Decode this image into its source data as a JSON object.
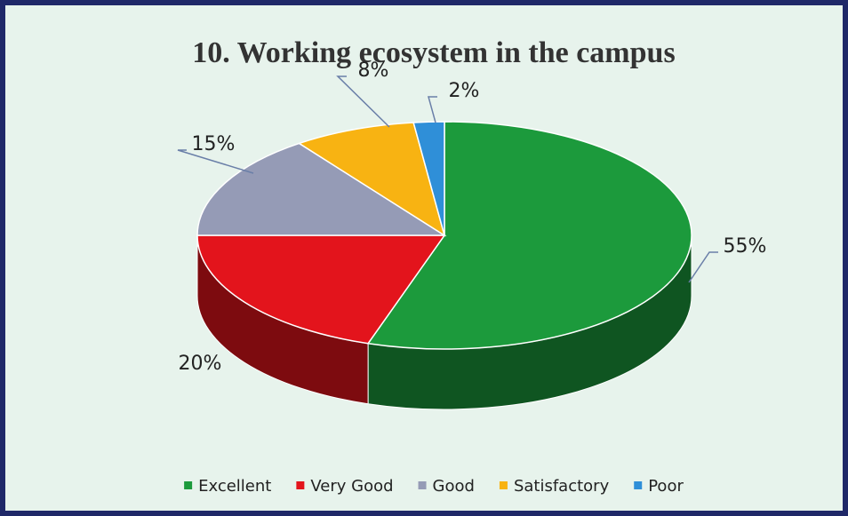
{
  "chart_data": {
    "type": "pie",
    "title": "10. Working ecosystem in the campus",
    "categories": [
      "Excellent",
      "Very Good",
      "Good",
      "Satisfactory",
      "Poor"
    ],
    "values": [
      55,
      20,
      15,
      8,
      2
    ],
    "value_labels": [
      "55%",
      "20%",
      "15%",
      "8%",
      "2%"
    ],
    "colors": [
      "#1c9a3c",
      "#e3141c",
      "#959bb6",
      "#f8b312",
      "#2f8fd8"
    ],
    "legend": "bottom"
  }
}
